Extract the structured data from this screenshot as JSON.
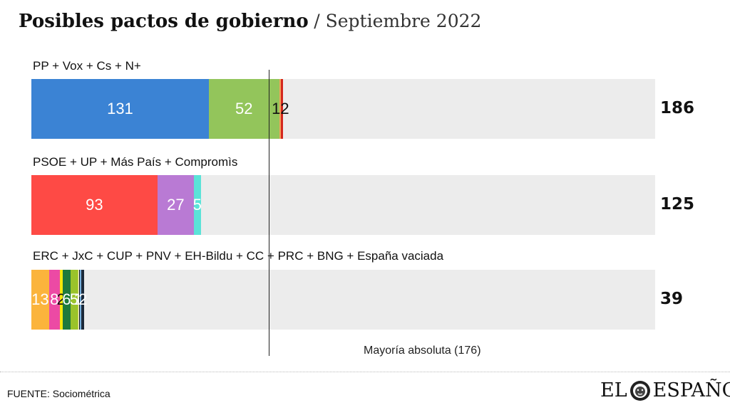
{
  "header": {
    "title": "Posibles pactos de gobierno",
    "subtitle": "/ Septiembre 2022"
  },
  "chart_data": {
    "type": "bar",
    "stacked": true,
    "orientation": "horizontal",
    "xlim": [
      0,
      350
    ],
    "majority_line": {
      "value": 176,
      "label": "Mayoría absoluta (176)"
    },
    "groups": [
      {
        "label": "PP + Vox + Cs + N+",
        "total": "186",
        "segments": [
          {
            "value": 131,
            "label": "131",
            "color": "#3b83d4",
            "text_color": "#ffffff"
          },
          {
            "value": 52,
            "label": "52",
            "color": "#93c55b",
            "text_color": "#ffffff"
          },
          {
            "value": 1,
            "label": "",
            "color": "#f2a15b",
            "text_color": "#111111"
          },
          {
            "value": 2,
            "label": "",
            "color": "#d4271e",
            "text_color": "#111111"
          }
        ],
        "overlay_label": "12"
      },
      {
        "label": "PSOE + UP + Más País + Compromìs",
        "total": "125",
        "segments": [
          {
            "value": 93,
            "label": "93",
            "color": "#fe4a45",
            "text_color": "#ffffff"
          },
          {
            "value": 27,
            "label": "27",
            "color": "#b97ad4",
            "text_color": "#ffffff"
          },
          {
            "value": 5,
            "label": "5",
            "color": "#5be3d8",
            "text_color": "#ffffff"
          }
        ]
      },
      {
        "label": "ERC + JxC + CUP + PNV + EH-Bildu + CC + PRC + BNG + España vaciada",
        "total": "39",
        "segments": [
          {
            "value": 13,
            "label": "13",
            "color": "#fbb43c",
            "text_color": "#ffffff"
          },
          {
            "value": 8,
            "label": "8",
            "color": "#ec4aa4",
            "text_color": "#ffffff"
          },
          {
            "value": 2,
            "label": "2",
            "color": "#f5e80a",
            "text_color": "#111111"
          },
          {
            "value": 6,
            "label": "6",
            "color": "#1f7a3c",
            "text_color": "#ffffff"
          },
          {
            "value": 5,
            "label": "5",
            "color": "#9ac32b",
            "text_color": "#ffffff"
          },
          {
            "value": 1,
            "label": "1",
            "color": "#c7d53e",
            "text_color": "#ffffff"
          },
          {
            "value": 1,
            "label": "",
            "color": "#111111",
            "text_color": "#ffffff"
          },
          {
            "value": 1,
            "label": "",
            "color": "#7ab3e0",
            "text_color": "#ffffff"
          },
          {
            "value": 2,
            "label": "2",
            "color": "#1c2a3a",
            "text_color": "#ffffff"
          }
        ]
      }
    ]
  },
  "footer": {
    "source": "FUENTE: Sociométrica",
    "logo_left": "EL",
    "logo_right": "ESPAÑOL"
  }
}
